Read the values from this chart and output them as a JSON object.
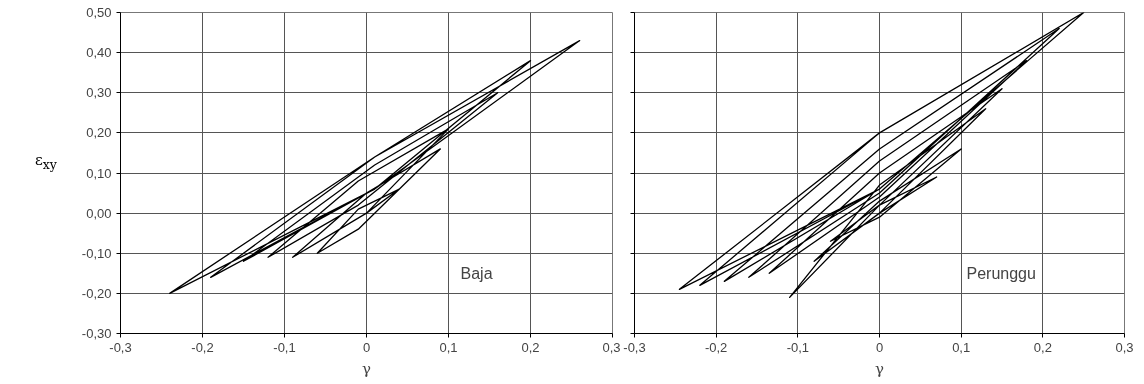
{
  "chart_data": [
    {
      "type": "line",
      "xlabel": "γ",
      "ylabel": "ε$_{xy}$",
      "annotations": [
        "Baja"
      ],
      "grid": true,
      "xlim": [
        -0.3,
        0.3
      ],
      "xticks": [
        {
          "value": -0.3,
          "label": "-0,3"
        },
        {
          "value": -0.2,
          "label": "-0,2"
        },
        {
          "value": -0.1,
          "label": "-0,1"
        },
        {
          "value": 0,
          "label": "0"
        },
        {
          "value": 0.1,
          "label": "0,1"
        },
        {
          "value": 0.2,
          "label": "0,2"
        },
        {
          "value": 0.3,
          "label": "0,3"
        }
      ],
      "ylim": [
        -0.3,
        0.5
      ],
      "yticks": [
        {
          "value": -0.3,
          "label": "-0,30"
        },
        {
          "value": -0.2,
          "label": "-0,20"
        },
        {
          "value": -0.1,
          "label": "-0,10"
        },
        {
          "value": 0,
          "label": "0,00"
        },
        {
          "value": 0.1,
          "label": "0,10"
        },
        {
          "value": 0.2,
          "label": "0,20"
        },
        {
          "value": 0.3,
          "label": "0,30"
        },
        {
          "value": 0.4,
          "label": "0,40"
        },
        {
          "value": 0.5,
          "label": "0,50"
        }
      ],
      "series": [
        {
          "color": "#000000",
          "x": [
            0,
            0.04,
            -0.01,
            -0.06,
            -0.01,
            0.09,
            0.0,
            -0.09,
            0.0,
            0.1,
            -0.01,
            -0.12,
            -0.01,
            0.16,
            0.01,
            -0.15,
            0.01,
            0.2,
            0.01,
            -0.19,
            0.01,
            0.26,
            0.01,
            -0.24,
            0.01,
            0.26
          ],
          "values": [
            0,
            0.06,
            0.01,
            -0.1,
            -0.04,
            0.16,
            0.05,
            -0.11,
            0.0,
            0.21,
            0.08,
            -0.11,
            0.02,
            0.3,
            0.12,
            -0.12,
            0.06,
            0.38,
            0.14,
            -0.16,
            0.06,
            0.43,
            0.14,
            -0.2,
            0.06,
            0.43
          ]
        }
      ]
    },
    {
      "type": "line",
      "xlabel": "γ",
      "annotations": [
        "Perunggu"
      ],
      "grid": true,
      "tick_labels": "x",
      "xlim": [
        -0.3,
        0.3
      ],
      "xticks": [
        {
          "value": -0.3,
          "label": "-0,3"
        },
        {
          "value": -0.2,
          "label": "-0,2"
        },
        {
          "value": -0.1,
          "label": "-0,1"
        },
        {
          "value": 0,
          "label": "0"
        },
        {
          "value": 0.1,
          "label": "0,1"
        },
        {
          "value": 0.2,
          "label": "0,2"
        },
        {
          "value": 0.3,
          "label": "0,3"
        }
      ],
      "ylim": [
        -0.3,
        0.5
      ],
      "yticks": [
        -0.3,
        -0.2,
        -0.1,
        0,
        0.1,
        0.2,
        0.3,
        0.4,
        0.5
      ],
      "series": [
        {
          "color": "#000000",
          "x": [
            0,
            0.07,
            0.0,
            -0.06,
            0.0,
            0.1,
            0.0,
            -0.08,
            0.0,
            0.13,
            0.0,
            -0.11,
            0.0,
            0.15,
            0.0,
            -0.135,
            0.0,
            0.18,
            0.0,
            -0.16,
            0.0,
            0.22,
            0.0,
            -0.19,
            0.0,
            0.25,
            0.0,
            -0.22,
            0.0,
            0.25,
            0.0,
            -0.245,
            0.0,
            0.25
          ],
          "values": [
            0,
            0.09,
            0.02,
            -0.07,
            -0.01,
            0.16,
            0.03,
            -0.12,
            0.0,
            0.26,
            0.07,
            -0.21,
            0.02,
            0.31,
            0.1,
            -0.15,
            0.04,
            0.38,
            0.13,
            -0.16,
            0.05,
            0.46,
            0.16,
            -0.17,
            0.06,
            0.5,
            0.2,
            -0.18,
            0.06,
            0.5,
            0.2,
            -0.19,
            0.06,
            0.5
          ]
        }
      ]
    }
  ]
}
